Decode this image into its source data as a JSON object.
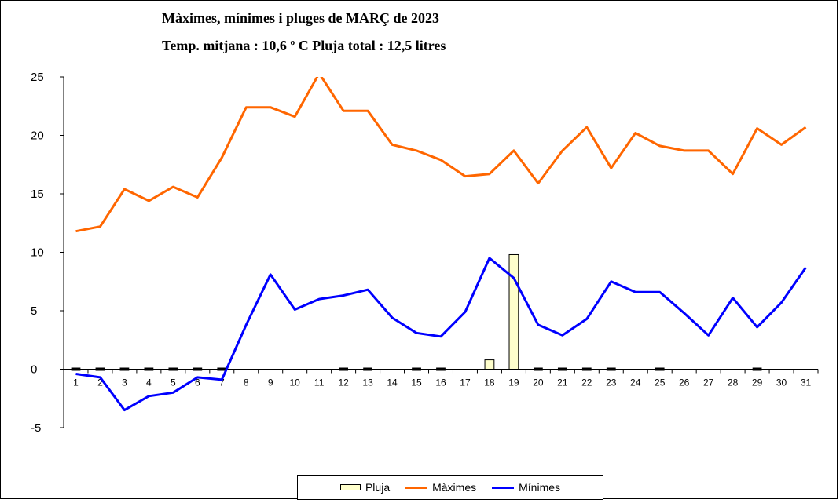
{
  "chart_data": {
    "type": "line",
    "title": "Màximes, mínimes i pluges de  MARÇ de 2023",
    "subtitle": "Temp. mitjana : 10,6 º C   Pluja total : 12,5 litres",
    "categories": [
      "1",
      "2",
      "3",
      "4",
      "5",
      "6",
      "7",
      "8",
      "9",
      "10",
      "11",
      "12",
      "13",
      "14",
      "15",
      "16",
      "17",
      "18",
      "19",
      "20",
      "21",
      "22",
      "23",
      "24",
      "25",
      "26",
      "27",
      "28",
      "29",
      "30",
      "31"
    ],
    "ylim": [
      -5,
      25
    ],
    "yticks": [
      -5,
      0,
      5,
      10,
      15,
      20,
      25
    ],
    "grid": false,
    "legend_position": "bottom",
    "series": [
      {
        "name": "Pluja",
        "kind": "bar",
        "color": "#FFFFCC",
        "values": [
          0,
          0,
          0,
          0,
          0,
          0,
          0,
          null,
          null,
          null,
          null,
          0,
          0,
          null,
          0,
          0,
          null,
          0.8,
          9.8,
          0,
          0,
          0,
          0,
          null,
          0,
          null,
          null,
          null,
          0,
          null,
          null
        ]
      },
      {
        "name": "Màximes",
        "kind": "line",
        "color": "#FF6600",
        "values": [
          11.8,
          12.2,
          15.4,
          14.4,
          15.6,
          14.7,
          18.1,
          22.4,
          22.4,
          21.6,
          25.3,
          22.1,
          22.1,
          19.2,
          18.7,
          17.9,
          16.5,
          16.7,
          18.7,
          15.9,
          18.7,
          20.7,
          17.2,
          20.2,
          19.1,
          18.7,
          18.7,
          16.7,
          20.6,
          19.2,
          20.7
        ]
      },
      {
        "name": "Mínimes",
        "kind": "line",
        "color": "#0000FF",
        "values": [
          -0.4,
          -0.7,
          -3.5,
          -2.3,
          -2.0,
          -0.7,
          -0.9,
          3.8,
          8.1,
          5.1,
          6.0,
          6.3,
          6.8,
          4.4,
          3.1,
          2.8,
          4.9,
          9.5,
          7.8,
          3.8,
          2.9,
          4.3,
          7.5,
          6.6,
          6.6,
          4.8,
          2.9,
          6.1,
          3.6,
          5.7,
          8.7
        ]
      }
    ]
  }
}
